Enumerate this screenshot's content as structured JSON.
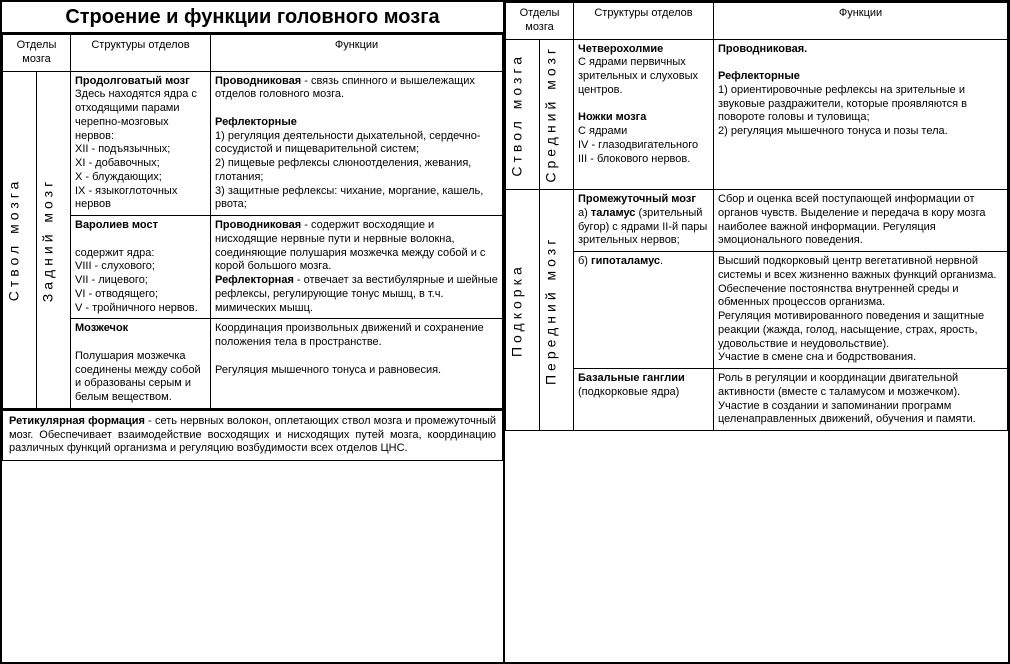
{
  "title": "Строение и функции головного мозга",
  "headers": {
    "col1": "Отделы мозга",
    "col2": "Структуры отделов",
    "col3": "Функции"
  },
  "left": {
    "groupLabel": "Ствол мозга",
    "subLabel": "Задний мозг",
    "rows": [
      {
        "struct": "<b>Продолговатый мозг</b><br>Здесь находятся ядра с отходящими парами черепно-мозговых нервов:<br>XII - подъязычных;<br>XI - добавочных;<br>X - блуждающих;<br>IX - языкоглоточных нервов",
        "func": "<b>Проводниковая</b> - связь спинного и вышележащих отделов головного мозга.<br><br><b>Рефлекторные</b><br>1) регуляция деятельности дыхательной, сердечно-сосудистой и пищеварительной систем;<br>2) пищевые рефлексы слюноотделения, жевания, глотания;<br>3) защитные рефлексы: чихание, моргание, кашель, рвота;"
      },
      {
        "struct": "<b>Варолиев мост</b><br><br>содержит ядра:<br>VIII - слухового;<br>VII - лицевого;<br>VI - отводящего;<br>V - тройничного нервов.",
        "func": "<b>Проводниковая</b> - содержит восходящие и нисходящие нервные пути и нервные волокна, соединяющие полушария мозжечка между собой и с корой большого мозга.<br><b>Рефлекторная</b> - отвечает за вестибулярные и шейные рефлексы, регулирующие тонус мышц, в т.ч. мимических мышц."
      },
      {
        "struct": "<b>Мозжечок</b><br><br>Полушария мозжечка соединены между собой и образованы серым и белым веществом.",
        "func": "Координация произвольных движений и сохранение положения тела в пространстве.<br><br>Регуляция мышечного тонуса и равновесия."
      }
    ],
    "footer": "<b>Ретикулярная формация</b> - сеть нервных волокон, оплетающих ствол мозга и промежуточный мозг. Обеспечивает взаимодействие восходящих и нисходящих путей мозга, координацию различных функций организма и регуляцию возбудимости всех отделов ЦНС."
  },
  "right": {
    "group1Label": "Ствол мозга",
    "sub1Label": "Средний мозг",
    "row1": {
      "struct": "<b>Четверохолмие</b><br>С ядрами первичных зрительных и слуховых центров.<br><br><b>Ножки мозга</b><br>С ядрами<br>IV - глазодвигательного<br>III - блокового нервов.",
      "func": "<b>Проводниковая.</b><br><br><b>Рефлекторные</b><br>1) ориентировочные рефлексы на зрительные и звуковые раздражители, которые проявляются в повороте головы и туловища;<br>2) регуляция мышечного тонуса и позы тела."
    },
    "group2Label": "Подкорка",
    "sub2Label": "Передний мозг",
    "rows2": [
      {
        "struct": "<b>Промежуточный мозг</b><br>а) <b>таламус</b> (зрительный бугор) с ядрами II-й пары зрительных нервов;",
        "func": "Сбор и оценка всей поступающей информации от органов чувств. Выделение и передача в кору мозга наиболее важной информации. Регуляция эмоционального поведения."
      },
      {
        "struct": "б) <b>гипоталамус</b>.",
        "func": "Высший подкорковый центр вегетативной нервной системы и всех жизненно важных функций организма.<br>Обеспечение постоянства внутренней среды и обменных процессов организма.<br>Регуляция мотивированного поведения и защитные реакции (жажда, голод, насыщение, страх, ярость, удовольствие и неудовольствие).<br>Участие в смене сна и бодрствования."
      },
      {
        "struct": "<b>Базальные ганглии</b> (подкорковые ядра)",
        "func": "Роль в регуляции и координации двигательной активности (вместе с таламусом и мозжечком).<br>Участие в создании и запоминании программ целенаправленных движений, обучения и памяти."
      }
    ]
  }
}
